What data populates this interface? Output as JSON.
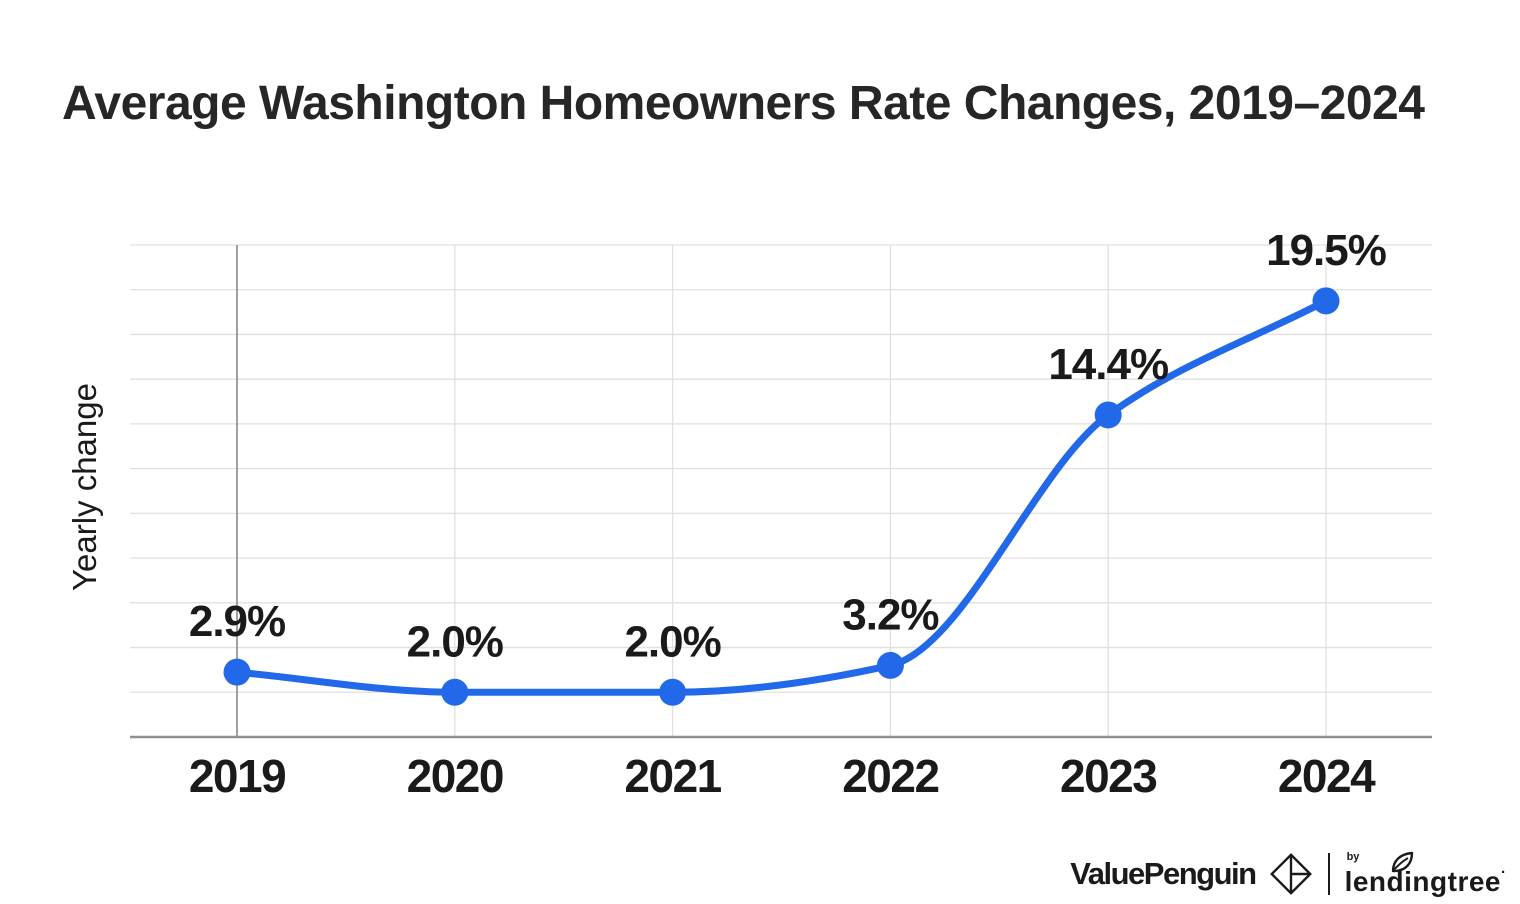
{
  "chart_data": {
    "type": "line",
    "title": "Average Washington Homeowners Rate Changes, 2019–2024",
    "ylabel": "Yearly change",
    "xlabel": "",
    "categories": [
      "2019",
      "2020",
      "2021",
      "2022",
      "2023",
      "2024"
    ],
    "values": [
      2.9,
      2.0,
      2.0,
      3.2,
      14.4,
      19.5
    ],
    "point_labels": [
      "2.9%",
      "2.0%",
      "2.0%",
      "3.2%",
      "14.4%",
      "19.5%"
    ],
    "ylim": [
      0,
      22
    ],
    "ygrid_step": 2,
    "grid": "horizontal and vertical, no y tick labels",
    "legend": "none",
    "line_color": "#2269ea",
    "point_color": "#2269ea",
    "grid_color": "#e0e0e0",
    "axis_color": "#909090",
    "label_color": "#1a1a1a"
  },
  "footer": {
    "brand": "ValuePenguin",
    "by": "by",
    "partner": "lendingtree",
    "trademark": "·"
  }
}
